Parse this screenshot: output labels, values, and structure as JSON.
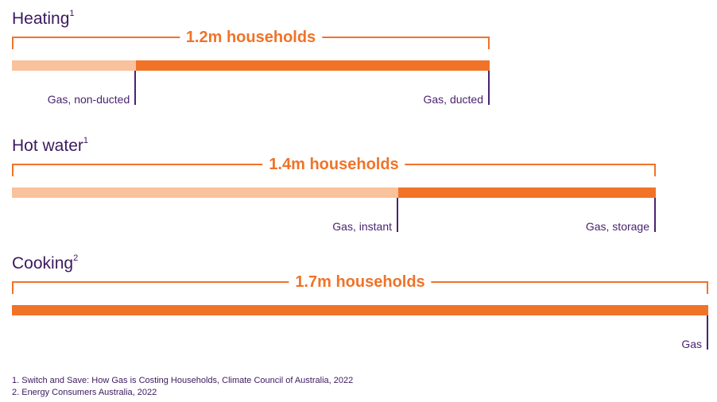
{
  "chart_data": {
    "type": "bar",
    "charts": [
      {
        "title": "Heating",
        "footnote_ref": "1",
        "total_label": "1.2m households",
        "segments": [
          {
            "name": "Gas, non-ducted",
            "fraction": 0.26,
            "color": "#f9c19c"
          },
          {
            "name": "Gas, ducted",
            "fraction": 0.74,
            "color": "#f07328"
          }
        ]
      },
      {
        "title": "Hot water",
        "footnote_ref": "1",
        "total_label": "1.4m households",
        "segments": [
          {
            "name": "Gas, instant",
            "fraction": 0.6,
            "color": "#f9c19c"
          },
          {
            "name": "Gas, storage",
            "fraction": 0.4,
            "color": "#f07328"
          }
        ]
      },
      {
        "title": "Cooking",
        "footnote_ref": "2",
        "total_label": "1.7m households",
        "segments": [
          {
            "name": "Gas",
            "fraction": 1.0,
            "color": "#f07328"
          }
        ]
      }
    ]
  },
  "footnotes": [
    "1. Switch and Save: How Gas is Costing Households, Climate Council of Australia, 2022",
    "2. Energy Consumers Australia, 2022"
  ]
}
